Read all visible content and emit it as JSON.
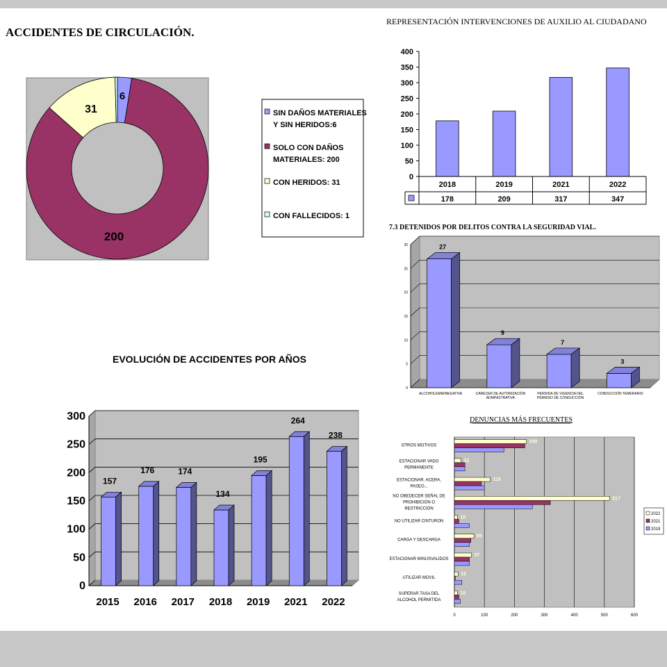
{
  "chart_data": [
    {
      "id": "accidentes",
      "type": "pie",
      "title": "ACCIDENTES DE CIRCULACIÓN.",
      "categories": [
        "SIN DAÑOS MATERIALES Y SIN HERIDOS",
        "SOLO CON DAÑOS MATERIALES",
        "CON HERIDOS",
        "CON FALLECIDOS"
      ],
      "values": [
        6,
        200,
        31,
        1
      ],
      "data_labels": [
        "6",
        "200",
        "31",
        ""
      ],
      "legend": [
        "SIN DAÑOS MATERIALES Y SIN HERIDOS:6",
        "SOLO CON DAÑOS MATERIALES: 200",
        "CON HERIDOS: 31",
        "CON FALLECIDOS: 1"
      ],
      "colors": [
        "#9999ff",
        "#993366",
        "#ffffcc",
        "#ccffff"
      ],
      "legend_position": "right",
      "style": "donut"
    },
    {
      "id": "auxilio",
      "type": "bar",
      "title": "REPRESENTACIÓN INTERVENCIONES DE AUXILIO AL CIUDADANO",
      "categories": [
        "2018",
        "2019",
        "2021",
        "2022"
      ],
      "values": [
        178,
        209,
        317,
        347
      ],
      "yticks": [
        "0",
        "50",
        "100",
        "150",
        "200",
        "250",
        "300",
        "350",
        "400"
      ],
      "ylim": [
        0,
        400
      ],
      "grid": false,
      "color": "#9999ff",
      "data_table": true
    },
    {
      "id": "detenidos",
      "type": "bar",
      "title": "7.3 DETENIDOS POR DELITOS CONTRA LA SEGURIDAD VIAL.",
      "categories": [
        "ALCOHOLEMIA/NEGATIVA",
        "CARECER DE AUTORIZACIÓN ADMINISTRATIVA",
        "PERDIDA DE VIGENCIA DEL PERMISO DE CONDUCCIÓN",
        "CONDUCCIÓN TEMERARIO"
      ],
      "values": [
        27,
        9,
        7,
        3
      ],
      "yticks": [
        "0",
        "5",
        "10",
        "15",
        "20",
        "25",
        "30"
      ],
      "ylim": [
        0,
        30
      ],
      "grid": true,
      "color": "#9999ff",
      "style": "3d"
    },
    {
      "id": "evolucion",
      "type": "bar",
      "title": "EVOLUCIÓN DE ACCIDENTES POR AÑOS",
      "categories": [
        "2015",
        "2016",
        "2017",
        "2018",
        "2019",
        "2021",
        "2022"
      ],
      "values": [
        157,
        176,
        174,
        134,
        195,
        264,
        238
      ],
      "yticks": [
        "0",
        "50",
        "100",
        "150",
        "200",
        "250",
        "300"
      ],
      "ylim": [
        0,
        300
      ],
      "grid": true,
      "color": "#9999ff",
      "style": "3d"
    },
    {
      "id": "denuncias",
      "type": "bar",
      "orientation": "horizontal",
      "title": "DENUNCIAS MÁS FRECUENTES",
      "categories": [
        "OTROS MOTIVOS",
        "ESTACIONAR VADO PERMANENTE",
        "ESTACIONAR. ACERA, PASEO...",
        "NO OBEDECER SEÑAL DE PROHIBICIÓN O RESTRICCIÓN",
        "NO UTILIZAR CINTURON",
        "CARGA Y DESCARGA",
        "ESTACIONAR MINUSVALIDOS",
        "UTILIZAR MOVIL",
        "SUPERAR TASA DEL ALCOHOL PERMITIDA"
      ],
      "series": [
        {
          "name": "2022",
          "color": "#ffffcc",
          "values": [
            240,
            22,
            119,
            517,
            10,
            65,
            57,
            12,
            10
          ],
          "labels": [
            "240",
            "22",
            "119",
            "517",
            "10",
            "65",
            "57",
            "12",
            "10"
          ]
        },
        {
          "name": "2021",
          "color": "#993366",
          "values": [
            235,
            35,
            90,
            320,
            15,
            55,
            50,
            3,
            15
          ]
        },
        {
          "name": "2019",
          "color": "#9999ff",
          "values": [
            165,
            35,
            100,
            260,
            50,
            50,
            50,
            25,
            20
          ]
        }
      ],
      "xticks": [
        "0",
        "100",
        "200",
        "300",
        "400",
        "500",
        "600"
      ],
      "xlim": [
        0,
        600
      ],
      "grid": true,
      "legend_position": "right"
    }
  ]
}
